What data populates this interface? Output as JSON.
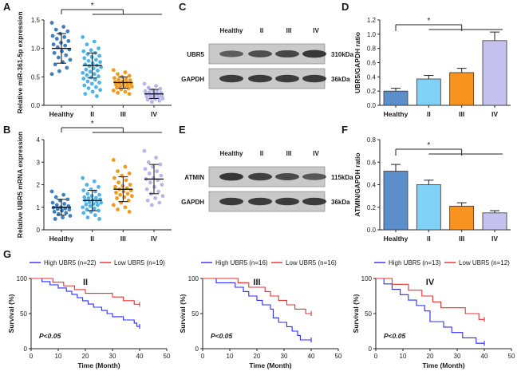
{
  "colors": {
    "healthy": "#3d7fbf",
    "ii": "#4fb3e6",
    "iii": "#f39a1c",
    "iv": "#b8b5ea",
    "bar_healthy": "#5b8fcb",
    "bar_ii": "#7fd2f5",
    "bar_iii": "#f7931e",
    "bar_iv": "#c6c2f0",
    "high": "#2b2bff",
    "low": "#e8312f",
    "blot_bg": "#c9c9c9",
    "band": "#2a2a2a"
  },
  "panel_letters": [
    "A",
    "B",
    "C",
    "D",
    "E",
    "F",
    "G"
  ],
  "chart_data": [
    {
      "panel": "A",
      "type": "scatter",
      "ylabel": "Relative miR-361-5p expression",
      "categories": [
        "Healthy",
        "II",
        "III",
        "IV"
      ],
      "ylim": [
        0,
        1.5
      ],
      "yticks": [
        "0.0",
        "0.5",
        "1.0",
        "1.5"
      ],
      "means": [
        1.0,
        0.7,
        0.4,
        0.2
      ],
      "sd": [
        0.26,
        0.22,
        0.1,
        0.08
      ],
      "points": [
        [
          1.45,
          1.38,
          1.33,
          1.3,
          1.26,
          1.22,
          1.2,
          1.17,
          1.13,
          1.1,
          1.07,
          1.05,
          1.02,
          0.98,
          0.95,
          0.92,
          0.88,
          0.84,
          0.8,
          0.76,
          0.72,
          0.66,
          0.6,
          0.55
        ],
        [
          1.2,
          1.12,
          1.07,
          1.0,
          0.97,
          0.95,
          0.92,
          0.9,
          0.87,
          0.85,
          0.83,
          0.8,
          0.78,
          0.76,
          0.74,
          0.72,
          0.7,
          0.69,
          0.67,
          0.65,
          0.63,
          0.61,
          0.59,
          0.57,
          0.55,
          0.53,
          0.51,
          0.49,
          0.47,
          0.45,
          0.42,
          0.4,
          0.38,
          0.35,
          0.32,
          0.3,
          0.27,
          0.24,
          0.2,
          0.16
        ],
        [
          0.62,
          0.58,
          0.55,
          0.52,
          0.5,
          0.48,
          0.46,
          0.45,
          0.44,
          0.42,
          0.41,
          0.4,
          0.39,
          0.38,
          0.37,
          0.36,
          0.35,
          0.34,
          0.33,
          0.32,
          0.31,
          0.3,
          0.28,
          0.26,
          0.24,
          0.22,
          0.2
        ],
        [
          0.38,
          0.34,
          0.31,
          0.29,
          0.27,
          0.25,
          0.24,
          0.23,
          0.22,
          0.21,
          0.2,
          0.19,
          0.18,
          0.17,
          0.16,
          0.15,
          0.14,
          0.13,
          0.12,
          0.11,
          0.1,
          0.08,
          0.06
        ]
      ],
      "significance": "*"
    },
    {
      "panel": "B",
      "type": "scatter",
      "ylabel": "Relative UBR5 mRNA expression",
      "categories": [
        "Healthy",
        "II",
        "III",
        "IV"
      ],
      "ylim": [
        0,
        4
      ],
      "yticks": [
        "0",
        "1",
        "2",
        "3",
        "4"
      ],
      "means": [
        1.0,
        1.3,
        1.8,
        2.25
      ],
      "sd": [
        0.35,
        0.45,
        0.55,
        0.65
      ],
      "points": [
        [
          1.7,
          1.55,
          1.45,
          1.35,
          1.3,
          1.2,
          1.15,
          1.1,
          1.05,
          1.0,
          0.98,
          0.95,
          0.92,
          0.9,
          0.85,
          0.8,
          0.75,
          0.7,
          0.62,
          0.55,
          0.48
        ],
        [
          2.3,
          2.15,
          2.0,
          1.9,
          1.8,
          1.75,
          1.7,
          1.6,
          1.55,
          1.5,
          1.45,
          1.42,
          1.4,
          1.35,
          1.32,
          1.3,
          1.25,
          1.22,
          1.2,
          1.15,
          1.12,
          1.1,
          1.05,
          1.0,
          0.95,
          0.9,
          0.85,
          0.8,
          0.75,
          0.65,
          0.55,
          0.48
        ],
        [
          3.1,
          2.8,
          2.6,
          2.5,
          2.4,
          2.3,
          2.2,
          2.1,
          2.0,
          1.95,
          1.9,
          1.85,
          1.8,
          1.75,
          1.7,
          1.65,
          1.6,
          1.55,
          1.5,
          1.45,
          1.4,
          1.3,
          1.2,
          1.1,
          1.0,
          0.9,
          0.8
        ],
        [
          3.5,
          3.2,
          3.0,
          2.9,
          2.8,
          2.7,
          2.6,
          2.5,
          2.4,
          2.3,
          2.25,
          2.2,
          2.1,
          2.0,
          1.9,
          1.8,
          1.7,
          1.6,
          1.5,
          1.4,
          1.3,
          1.2,
          1.1
        ]
      ],
      "significance": "*"
    },
    {
      "panel": "D",
      "type": "bar",
      "ylabel": "UBR5/GAPDH ratio",
      "categories": [
        "Healthy",
        "II",
        "III",
        "IV"
      ],
      "values": [
        0.2,
        0.37,
        0.46,
        0.91
      ],
      "errors": [
        0.04,
        0.05,
        0.06,
        0.12
      ],
      "ylim": [
        0,
        1.2
      ],
      "yticks": [
        "0.0",
        "0.2",
        "0.4",
        "0.6",
        "0.8",
        "1.0",
        "1.2"
      ],
      "significance": "*"
    },
    {
      "panel": "F",
      "type": "bar",
      "ylabel": "ATMIN/GAPDH ratio",
      "categories": [
        "Healthy",
        "II",
        "III",
        "IV"
      ],
      "values": [
        0.52,
        0.4,
        0.21,
        0.15
      ],
      "errors": [
        0.06,
        0.04,
        0.03,
        0.02
      ],
      "ylim": [
        0,
        0.8
      ],
      "yticks": [
        "0.0",
        "0.2",
        "0.4",
        "0.6",
        "0.8"
      ],
      "significance": "*"
    },
    {
      "panel": "G",
      "type": "line",
      "stage": "II",
      "xlabel": "Time (Month)",
      "ylabel": "Survival (%)",
      "xlim": [
        0,
        50
      ],
      "ylim": [
        0,
        100
      ],
      "xticks": [
        "0",
        "10",
        "20",
        "30",
        "40",
        "50"
      ],
      "yticks": [
        "0",
        "50",
        "100"
      ],
      "pvalue": "P<0.05",
      "series": [
        {
          "name": "High UBR5 (n=22)",
          "x": [
            0,
            4,
            7,
            10,
            13,
            15,
            17,
            19,
            21,
            23,
            26,
            28,
            30,
            32,
            34,
            36,
            38,
            39,
            40
          ],
          "y": [
            100,
            95.5,
            90.9,
            86.4,
            81.8,
            77.3,
            72.7,
            68.2,
            63.6,
            59.1,
            54.5,
            50,
            45.5,
            45.5,
            40.9,
            40.9,
            36.4,
            31.8,
            31.8
          ]
        },
        {
          "name": "Low UBR5 (n=19)",
          "x": [
            0,
            8,
            12,
            16,
            20,
            25,
            30,
            34,
            38,
            40
          ],
          "y": [
            100,
            94.7,
            89.5,
            84.2,
            78.9,
            78.9,
            73.7,
            68.4,
            63.2,
            63.2
          ]
        }
      ]
    },
    {
      "panel": "G",
      "type": "line",
      "stage": "III",
      "xlabel": "Time (Month)",
      "ylabel": "Survival (%)",
      "xlim": [
        0,
        50
      ],
      "ylim": [
        0,
        100
      ],
      "xticks": [
        "0",
        "10",
        "20",
        "30",
        "40",
        "50"
      ],
      "yticks": [
        "0",
        "50",
        "100"
      ],
      "pvalue": "P<0.05",
      "series": [
        {
          "name": "High UBR5 (n=16)",
          "x": [
            0,
            5,
            12,
            15,
            17,
            20,
            22,
            25,
            26,
            28,
            31,
            33,
            35,
            36,
            40
          ],
          "y": [
            100,
            93.8,
            87.5,
            81.3,
            75,
            68.8,
            62.5,
            56.3,
            43.8,
            37.5,
            31.3,
            25,
            18.8,
            12.5,
            12.5
          ]
        },
        {
          "name": "Low UBR5 (n=16)",
          "x": [
            0,
            13,
            17,
            20,
            23,
            25,
            28,
            31,
            34,
            38,
            40
          ],
          "y": [
            100,
            93.8,
            87.5,
            87.5,
            81.3,
            75,
            68.8,
            62.5,
            56.3,
            50,
            50
          ]
        }
      ]
    },
    {
      "panel": "G",
      "type": "line",
      "stage": "IV",
      "xlabel": "Time (Month)",
      "ylabel": "Survival (%)",
      "xlim": [
        0,
        50
      ],
      "ylim": [
        0,
        100
      ],
      "xticks": [
        "0",
        "10",
        "20",
        "30",
        "40",
        "50"
      ],
      "yticks": [
        "0",
        "50",
        "100"
      ],
      "pvalue": "P<0.05",
      "series": [
        {
          "name": "High UBR5 (n=13)",
          "x": [
            0,
            3,
            6,
            9,
            12,
            15,
            18,
            20,
            25,
            28,
            32,
            35,
            37,
            38,
            40
          ],
          "y": [
            100,
            92.3,
            84.6,
            76.9,
            69.2,
            61.5,
            53.8,
            38.5,
            30.8,
            23.1,
            15.4,
            15.4,
            7.7,
            7.7,
            7.7
          ]
        },
        {
          "name": "Low UBR5 (n=12)",
          "x": [
            0,
            6,
            12,
            17,
            21,
            24,
            29,
            33,
            38,
            40
          ],
          "y": [
            100,
            91.7,
            83.3,
            75,
            66.7,
            58.3,
            58.3,
            50,
            41.7,
            41.7
          ]
        }
      ]
    }
  ],
  "blots": [
    {
      "panel": "C",
      "lane_labels": [
        "Healthy",
        "II",
        "III",
        "IV"
      ],
      "rows": [
        {
          "label": "UBR5",
          "kda": "310kDa",
          "intensity": [
            0.55,
            0.7,
            0.78,
            0.95
          ]
        },
        {
          "label": "GAPDH",
          "kda": "36kDa",
          "intensity": [
            0.9,
            0.9,
            0.9,
            0.9
          ]
        }
      ]
    },
    {
      "panel": "E",
      "lane_labels": [
        "Healthy",
        "II",
        "III",
        "IV"
      ],
      "rows": [
        {
          "label": "ATMIN",
          "kda": "115kDa",
          "intensity": [
            0.95,
            0.85,
            0.75,
            0.6
          ]
        },
        {
          "label": "GAPDH",
          "kda": "36kDa",
          "intensity": [
            0.9,
            0.9,
            0.9,
            0.9
          ]
        }
      ]
    }
  ]
}
